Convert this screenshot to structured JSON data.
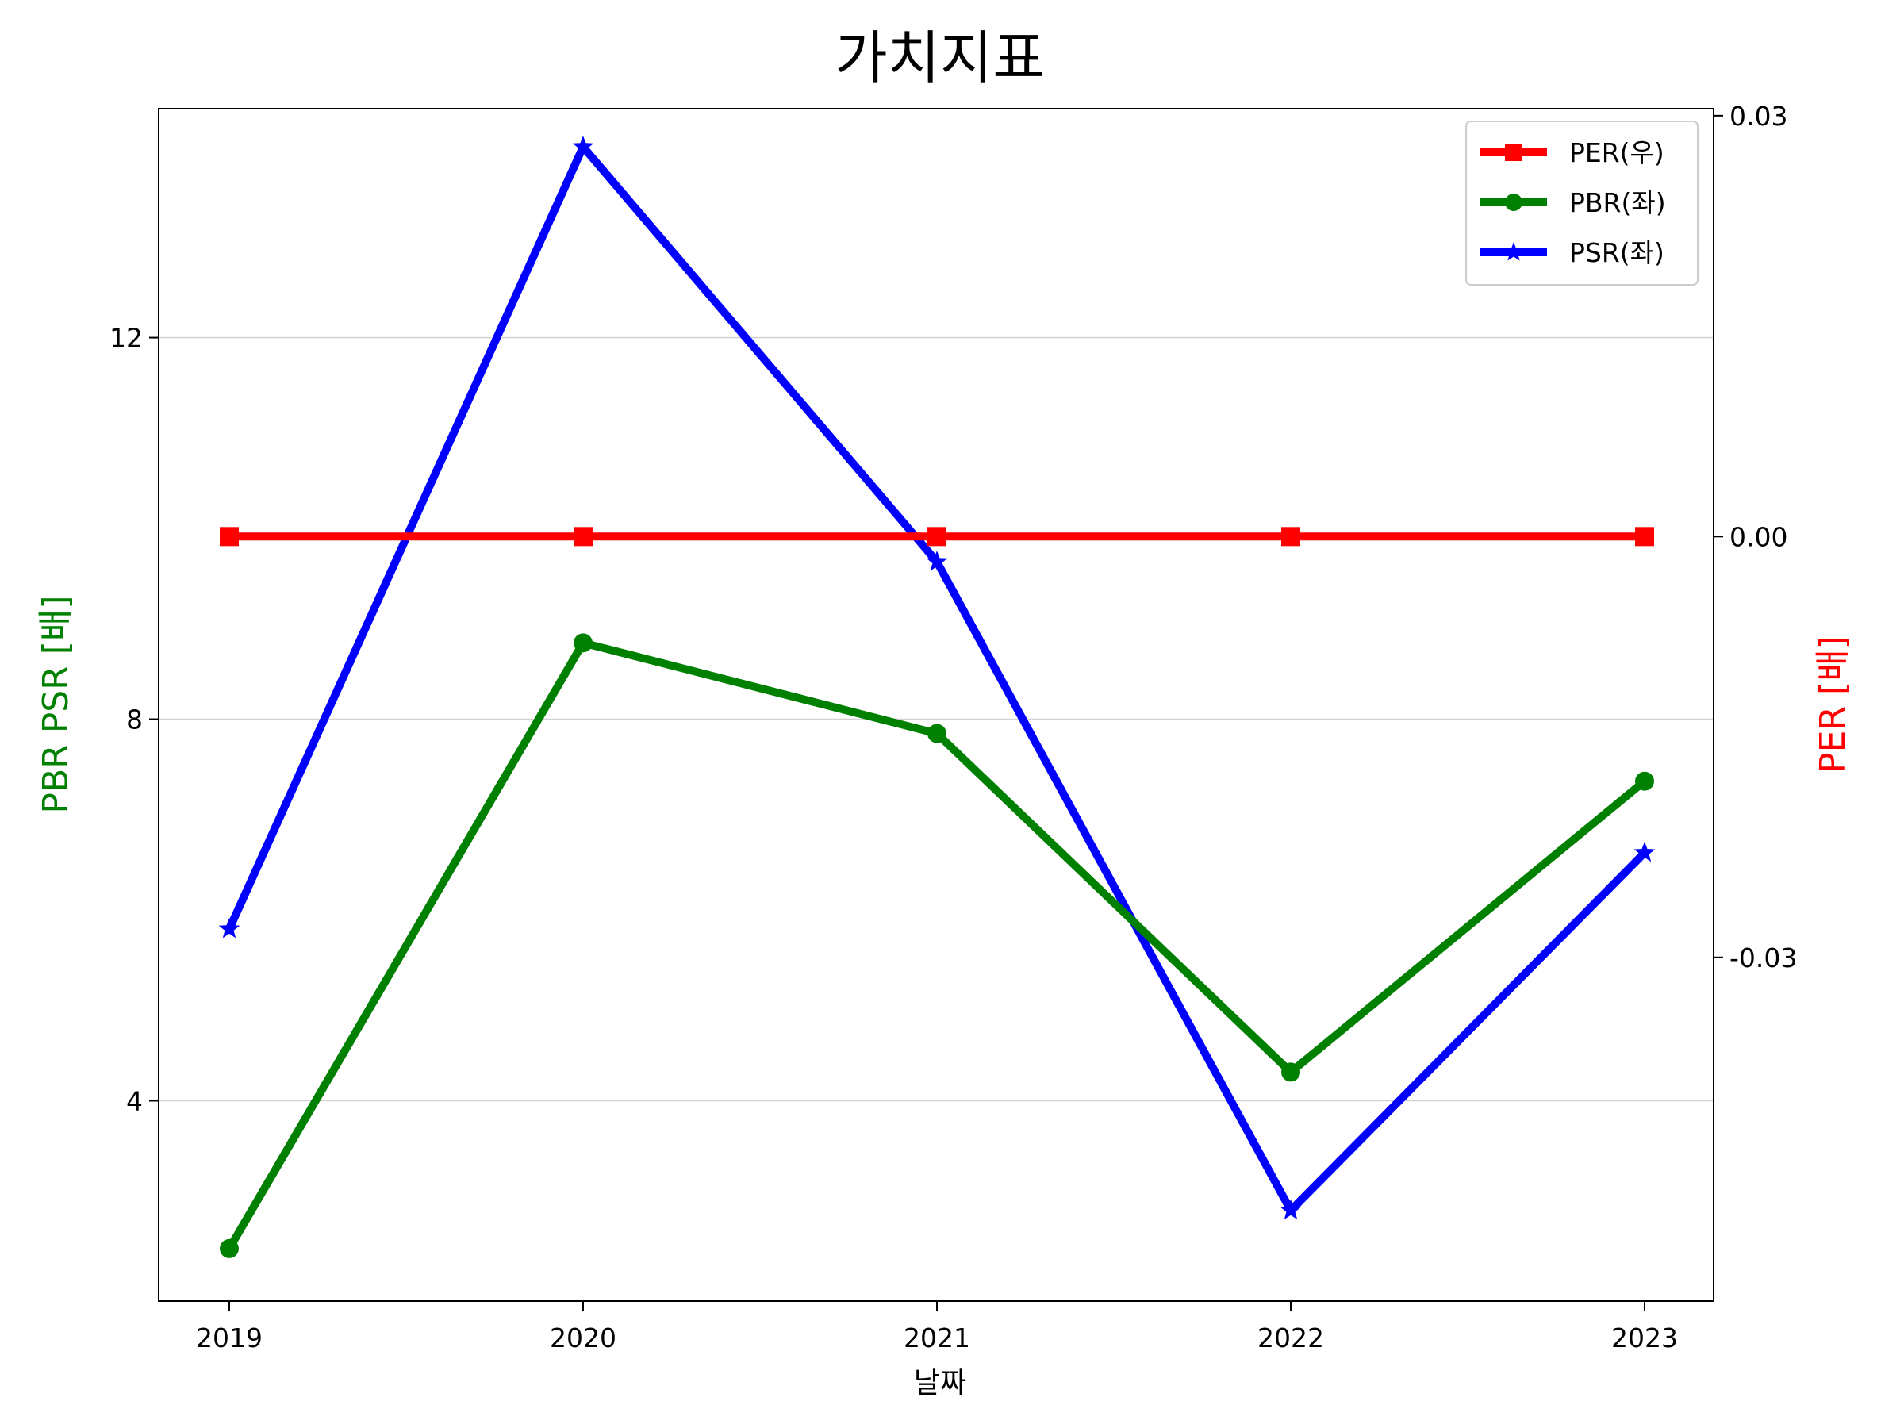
{
  "chart_data": {
    "type": "line",
    "title": "가치지표",
    "xlabel": "날짜",
    "ylabel_left": "PBR PSR [배]",
    "ylabel_right": "PER [배]",
    "x": [
      "2019",
      "2020",
      "2021",
      "2022",
      "2023"
    ],
    "ylim_left": [
      1.9,
      14.4
    ],
    "yticks_left": [
      "4",
      "8",
      "12"
    ],
    "ylim_right": [
      -0.0545,
      0.0305
    ],
    "yticks_right": [
      "-0.03",
      "0.00",
      "0.03"
    ],
    "grid": "horizontal-left-axis",
    "legend_position": "top-right",
    "series": [
      {
        "name": "PER(우)",
        "axis": "right",
        "color": "#ff0000",
        "marker": "square",
        "values": [
          0,
          0,
          0,
          0,
          0
        ]
      },
      {
        "name": "PBR(좌)",
        "axis": "left",
        "color": "#008000",
        "marker": "circle",
        "values": [
          2.45,
          8.8,
          7.85,
          4.3,
          7.35
        ]
      },
      {
        "name": "PSR(좌)",
        "axis": "left",
        "color": "#0000ff",
        "marker": "star",
        "values": [
          5.8,
          14.0,
          9.65,
          2.85,
          6.6
        ]
      }
    ]
  }
}
